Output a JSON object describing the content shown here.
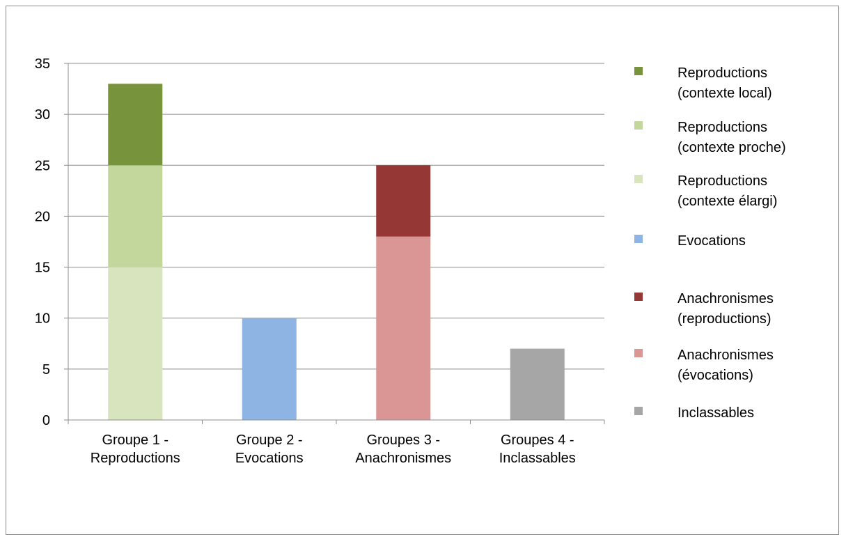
{
  "chart_data": {
    "type": "bar",
    "stacked": true,
    "title": "",
    "xlabel": "",
    "ylabel": "",
    "ylim": [
      0,
      35
    ],
    "yticks": [
      0,
      5,
      10,
      15,
      20,
      25,
      30,
      35
    ],
    "grid": true,
    "legend_position": "right",
    "categories": [
      [
        "Groupe 1 -",
        "Reproductions"
      ],
      [
        "Groupe 2 -",
        "Evocations"
      ],
      [
        "Groupes 3 -",
        "Anachronismes"
      ],
      [
        "Groupes 4 -",
        "Inclassables"
      ]
    ],
    "series": [
      {
        "name": [
          "Reproductions",
          "(contexte élargi)"
        ],
        "color": "#d7e4bd",
        "values": [
          15,
          0,
          0,
          0
        ]
      },
      {
        "name": [
          "Reproductions",
          "(contexte proche)"
        ],
        "color": "#c3d69b",
        "values": [
          10,
          0,
          0,
          0
        ]
      },
      {
        "name": [
          "Reproductions",
          "(contexte local)"
        ],
        "color": "#77933c",
        "values": [
          8,
          0,
          0,
          0
        ]
      },
      {
        "name": [
          "Evocations"
        ],
        "color": "#8eb4e3",
        "values": [
          0,
          10,
          0,
          0
        ]
      },
      {
        "name": [
          "Anachronismes",
          "(évocations)"
        ],
        "color": "#d99694",
        "values": [
          0,
          0,
          18,
          0
        ]
      },
      {
        "name": [
          "Anachronismes",
          "(reproductions)"
        ],
        "color": "#953735",
        "values": [
          0,
          0,
          7,
          0
        ]
      },
      {
        "name": [
          "Inclassables"
        ],
        "color": "#a6a6a6",
        "values": [
          0,
          0,
          0,
          7
        ]
      }
    ],
    "legend_order": [
      2,
      1,
      0,
      3,
      5,
      4,
      6
    ]
  }
}
